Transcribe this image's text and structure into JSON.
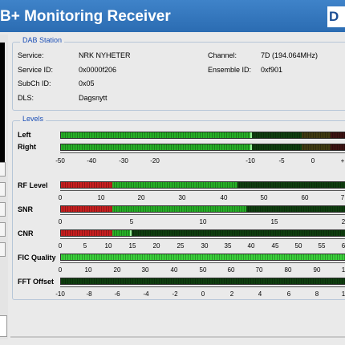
{
  "window": {
    "title": "B+ Monitoring Receiver",
    "logo_text": "D"
  },
  "dab_station": {
    "title": "DAB Station",
    "service_label": "Service:",
    "service": "NRK NYHETER",
    "service_id_label": "Service ID:",
    "service_id": "0x0000f206",
    "subch_id_label": "SubCh ID:",
    "subch_id": "0x05",
    "dls_label": "DLS:",
    "dls": "Dagsnytt",
    "channel_label": "Channel:",
    "channel": "7D (194.064MHz)",
    "ensemble_id_label": "Ensemble ID:",
    "ensemble_id": "0xf901"
  },
  "levels": {
    "title": "Levels",
    "audio": {
      "left_label": "Left",
      "right_label": "Right",
      "left_level_db": -10,
      "right_level_db": -10,
      "scale": [
        "-50",
        "-40",
        "-30",
        "-20",
        "-10",
        "-5",
        "0",
        "+"
      ]
    },
    "rf_level": {
      "label": "RF Level",
      "value": 43,
      "scale": [
        "0",
        "10",
        "20",
        "30",
        "40",
        "50",
        "60",
        "7"
      ]
    },
    "snr": {
      "label": "SNR",
      "value": 6,
      "scale": [
        "0",
        "5",
        "10",
        "15",
        "2"
      ]
    },
    "cnr": {
      "label": "CNR",
      "value": 8,
      "scale": [
        "0",
        "5",
        "10",
        "15",
        "20",
        "25",
        "30",
        "35",
        "40",
        "45",
        "50",
        "55",
        "60",
        "6"
      ]
    },
    "fic_quality": {
      "label": "FIC Quality",
      "value": 100,
      "scale": [
        "0",
        "10",
        "20",
        "30",
        "40",
        "50",
        "60",
        "70",
        "80",
        "90",
        "1"
      ]
    },
    "fft_offset": {
      "label": "FFT Offset",
      "value": 0,
      "scale": [
        "-10",
        "-8",
        "-6",
        "-4",
        "-2",
        "0",
        "2",
        "4",
        "6",
        "8",
        "1"
      ]
    }
  },
  "colors": {
    "title_bar": "#2b6cb2",
    "group_title": "#1b4fb7",
    "bar_active": "#27b027",
    "bar_low": "#c81f1f",
    "bar_inactive": "#0c2c0c"
  }
}
